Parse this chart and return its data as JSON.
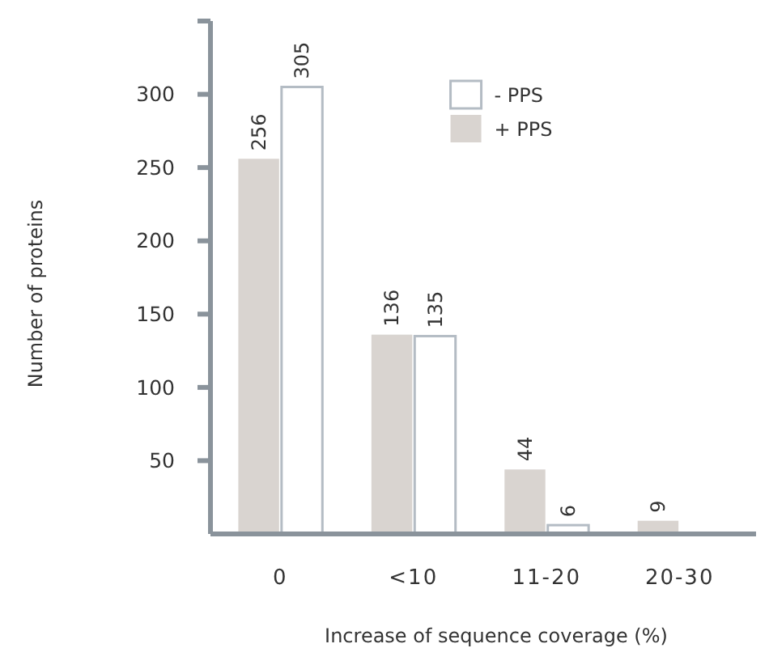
{
  "chart_data": {
    "type": "bar",
    "xlabel": "Increase of sequence coverage (%)",
    "ylabel": "Number of proteins",
    "categories": [
      "0",
      "<10",
      "11-20",
      "20-30"
    ],
    "series": [
      {
        "name": "+ PPS",
        "color": "#d9d4d0",
        "values": [
          256,
          136,
          44,
          9
        ]
      },
      {
        "name": "- PPS",
        "color": "#ffffff",
        "values": [
          305,
          135,
          6,
          null
        ]
      }
    ],
    "ylim": [
      0,
      350
    ],
    "yticks": [
      50,
      100,
      150,
      200,
      250,
      300,
      {
        "value": 350,
        "label": null
      }
    ],
    "data_labels": true,
    "grid": false,
    "legend": "top right"
  }
}
